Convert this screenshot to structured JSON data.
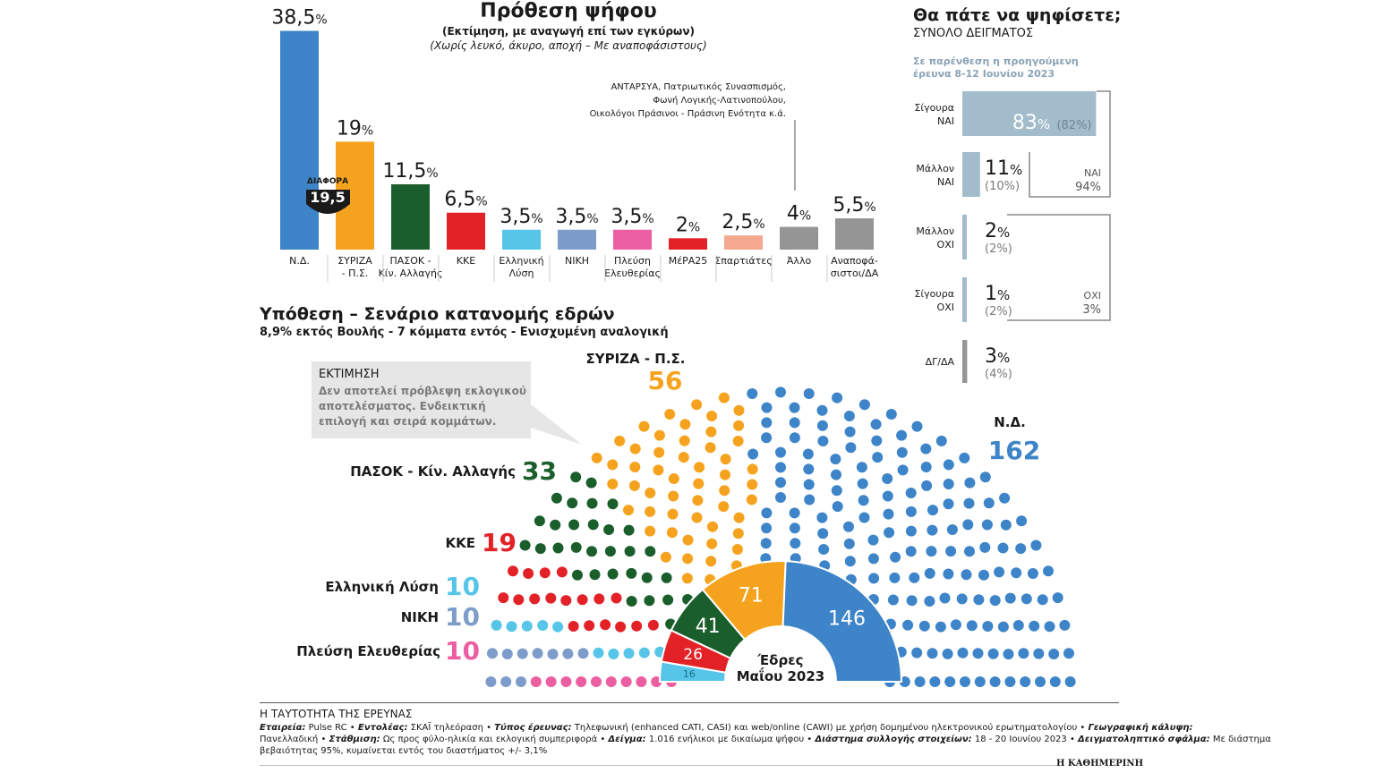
{
  "vote": {
    "title": "Πρόθεση ψήφου",
    "subtitle1": "(Εκτίμηση, με αναγωγή επί των εγκύρων)",
    "subtitle2": "(Χωρίς λευκό, άκυρο, αποχή – Με αναποφάσιστους)",
    "diff_label": "ΔΙΑΦΟΡΑ",
    "diff_value": "19,5",
    "other_note_lines": [
      "ΑΝΤΑΡΣΥΑ, Πατριωτικός Συνασπισμός,",
      "Φωνή Λογικής-Λατινοπούλου,",
      "Οικολόγοι Πράσινοι - Πράσινη Ενότητα κ.ά."
    ]
  },
  "chart_data": [
    {
      "type": "bar",
      "title": "Πρόθεση ψήφου",
      "categories": [
        "Ν.Δ.",
        "ΣΥΡΙΖΑ - Π.Σ.",
        "ΠΑΣΟΚ - Κίν. Αλλαγής",
        "ΚΚΕ",
        "Ελληνική Λύση",
        "ΝΙΚΗ",
        "Πλεύση Ελευθερίας",
        "ΜέΡΑ25",
        "Σπαρτιάτες",
        "Άλλο",
        "Αναποφάσιστοι/ΔΑ"
      ],
      "values": [
        38.5,
        19,
        11.5,
        6.5,
        3.5,
        3.5,
        3.5,
        2,
        2.5,
        4,
        5.5
      ],
      "value_labels": [
        "38,5",
        "19",
        "11,5",
        "6,5",
        "3,5",
        "3,5",
        "3,5",
        "2",
        "2,5",
        "4",
        "5,5"
      ],
      "axis_labels": [
        [
          "Ν.Δ."
        ],
        [
          "ΣΥΡΙΖΑ",
          "- Π.Σ."
        ],
        [
          "ΠΑΣΟΚ -",
          "Κίν. Αλλαγής"
        ],
        [
          "ΚΚΕ"
        ],
        [
          "Ελληνική",
          "Λύση"
        ],
        [
          "ΝΙΚΗ"
        ],
        [
          "Πλεύση",
          "Ελευθερίας"
        ],
        [
          "ΜέΡΑ25"
        ],
        [
          "Σπαρτιάτες"
        ],
        [
          "Άλλο"
        ],
        [
          "Αναποφά-",
          "σιστοι/ΔΑ"
        ]
      ],
      "colors": [
        "#3d84c8",
        "#f5a31f",
        "#1a5e2c",
        "#e32227",
        "#56c5e8",
        "#7d9cc9",
        "#ec5ea2",
        "#e32227",
        "#f4a98f",
        "#959595",
        "#959595"
      ],
      "percent_sign": "%"
    },
    {
      "type": "bar",
      "title": "Θα πάτε να ψηφίσετε;",
      "subtitle": "ΣΥΝΟΛΟ ΔΕΙΓΜΑΤΟΣ",
      "note": [
        "Σε παρένθεση η προηγούμενη",
        "έρευνα 8-12 Ιουνίου 2023"
      ],
      "categories": [
        [
          "Σίγουρα",
          "ΝΑΙ"
        ],
        [
          "Μάλλον",
          "ΝΑΙ"
        ],
        [
          "Μάλλον",
          "ΟΧΙ"
        ],
        [
          "Σίγουρα",
          "ΟΧΙ"
        ],
        [
          "ΔΓ/ΔΑ"
        ]
      ],
      "values": [
        83,
        11,
        2,
        1,
        3
      ],
      "previous": [
        "(82%)",
        "(10%)",
        "(2%)",
        "(2%)",
        "(4%)"
      ],
      "colors": [
        "#a2bccb",
        "#a2bccb",
        "#a2bccb",
        "#a2bccb",
        "#959595"
      ],
      "groups": [
        {
          "label": "ΝΑΙ",
          "value": "94%"
        },
        {
          "label": "ΟΧΙ",
          "value": "3%"
        }
      ]
    },
    {
      "type": "parliament",
      "title": "Υπόθεση – Σενάριο κατανομής εδρών",
      "subtitle": "8,9% εκτός Βουλής - 7 κόμματα εντός - Ενισχυμένη αναλογική",
      "series": [
        {
          "name": "Πλεύση Ελευθερίας",
          "seats": 10,
          "color": "#ec5ea2"
        },
        {
          "name": "ΝΙΚΗ",
          "seats": 10,
          "color": "#7d9cc9"
        },
        {
          "name": "Ελληνική Λύση",
          "seats": 10,
          "color": "#56c5e8"
        },
        {
          "name": "ΚΚΕ",
          "seats": 19,
          "color": "#e32227"
        },
        {
          "name": "ΠΑΣΟΚ - Κίν. Αλλαγής",
          "seats": 33,
          "color": "#1a5e2c"
        },
        {
          "name": "ΣΥΡΙΖΑ - Π.Σ.",
          "seats": 56,
          "color": "#f5a31f"
        },
        {
          "name": "Ν.Δ.",
          "seats": 162,
          "color": "#3d84c8"
        }
      ],
      "callout": {
        "title": "ΕΚΤΙΜΗΣΗ",
        "lines": [
          "Δεν αποτελεί πρόβλεψη εκλογικού",
          "αποτελέσματος. Ενδεικτική",
          "επιλογή και σειρά κομμάτων."
        ]
      }
    },
    {
      "type": "pie",
      "title": [
        "Έδρες",
        "Μαΐου 2023"
      ],
      "values": [
        16,
        26,
        41,
        71,
        146
      ],
      "colors": [
        "#56c5e8",
        "#e32227",
        "#1a5e2c",
        "#f5a31f",
        "#3d84c8"
      ]
    }
  ],
  "footer": {
    "title": "Η ΤΑΥΤΟΤΗΤΑ ΤΗΣ ΕΡΕΥΝΑΣ",
    "line1_parts": [
      [
        "Εταιρεία:",
        " Pulse RC • "
      ],
      [
        "Εντολέας:",
        " ΣΚΑΪ τηλεόραση • "
      ],
      [
        "Τύπος έρευνας:",
        " Τηλεφωνική (enhanced CATI, CASI) και web/online (CAWI) με χρήση δομημένου ηλεκτρονικού ερωτηματολογίου • "
      ],
      [
        "Γεωγραφική κάλυψη:",
        ""
      ]
    ],
    "line2_parts": [
      [
        "",
        "Πανελλαδική • "
      ],
      [
        "Στάθμιση:",
        " Ως προς φύλο-ηλικία και εκλογική συμπεριφορά • "
      ],
      [
        "Δείγμα:",
        " 1.016 ενήλικοι με δικαίωμα ψήφου • "
      ],
      [
        "Διάστημα συλλογής στοιχείων:",
        " 18 - 20 Ιουνίου 2023 • "
      ],
      [
        "Δειγματοληπτικό σφάλμα:",
        " Με διάστημα"
      ]
    ],
    "line3": "βεβαιότητας 95%, κυμαίνεται εντός του διαστήματος +/- 3,1%",
    "brand": "Η ΚΑΘΗΜΕΡΙΝΗ"
  }
}
